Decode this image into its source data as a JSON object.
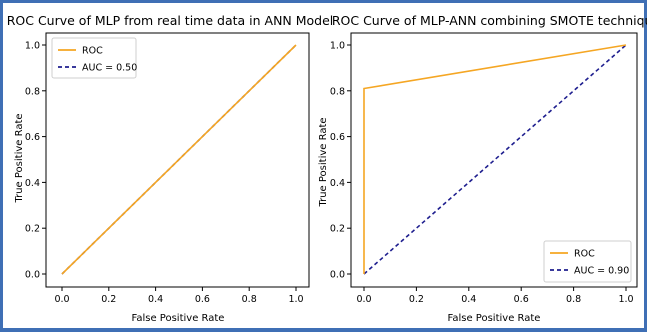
{
  "chart_data": [
    {
      "type": "line",
      "title": "ROC Curve of MLP from real time data in ANN Model",
      "xlabel": "False Positive Rate",
      "ylabel": "True Positive Rate",
      "xlim": [
        0.0,
        1.0
      ],
      "ylim": [
        0.0,
        1.0
      ],
      "xticks": [
        "0.0",
        "0.2",
        "0.4",
        "0.6",
        "0.8",
        "1.0"
      ],
      "yticks": [
        "0.0",
        "0.2",
        "0.4",
        "0.6",
        "0.8",
        "1.0"
      ],
      "legend_position": "top-left",
      "grid": false,
      "series": [
        {
          "name": "ROC",
          "color": "#f5a623",
          "style": "solid",
          "x": [
            0.0,
            1.0
          ],
          "y": [
            0.0,
            1.0
          ]
        },
        {
          "name": "AUC = 0.50",
          "color": "#1f1f8f",
          "style": "dashed",
          "x": [
            0.0,
            1.0
          ],
          "y": [
            0.0,
            1.0
          ]
        }
      ]
    },
    {
      "type": "line",
      "title": "ROC Curve of MLP-ANN combining SMOTE technique",
      "xlabel": "False Positive Rate",
      "ylabel": "True Positive Rate",
      "xlim": [
        0.0,
        1.0
      ],
      "ylim": [
        0.0,
        1.0
      ],
      "xticks": [
        "0.0",
        "0.2",
        "0.4",
        "0.6",
        "0.8",
        "1.0"
      ],
      "yticks": [
        "0.0",
        "0.2",
        "0.4",
        "0.6",
        "0.8",
        "1.0"
      ],
      "legend_position": "bottom-right",
      "grid": false,
      "series": [
        {
          "name": "ROC",
          "color": "#f5a623",
          "style": "solid",
          "x": [
            0.0,
            0.0,
            1.0
          ],
          "y": [
            0.0,
            0.81,
            1.0
          ]
        },
        {
          "name": "AUC = 0.90",
          "color": "#1f1f8f",
          "style": "dashed",
          "x": [
            0.0,
            1.0
          ],
          "y": [
            0.0,
            1.0
          ]
        }
      ]
    }
  ]
}
